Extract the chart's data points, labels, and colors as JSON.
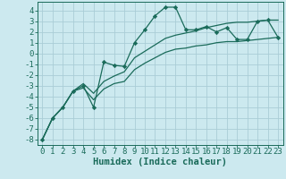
{
  "xlabel": "Humidex (Indice chaleur)",
  "bg_color": "#cce9ef",
  "grid_color": "#aacdd6",
  "line_color": "#1a6b5a",
  "x_values": [
    0,
    1,
    2,
    3,
    4,
    5,
    6,
    7,
    8,
    9,
    10,
    11,
    12,
    13,
    14,
    15,
    16,
    17,
    18,
    19,
    20,
    21,
    22,
    23
  ],
  "main_line": [
    -8.0,
    -6.0,
    -5.0,
    -3.5,
    -3.0,
    -5.0,
    -0.8,
    -1.1,
    -1.2,
    1.0,
    2.2,
    3.5,
    4.3,
    4.3,
    2.2,
    2.2,
    2.5,
    2.0,
    2.4,
    1.3,
    1.3,
    3.0,
    3.1,
    1.5
  ],
  "lower_line": [
    -8.0,
    -6.0,
    -5.0,
    -3.5,
    -3.2,
    -4.3,
    -3.3,
    -2.8,
    -2.6,
    -1.5,
    -0.9,
    -0.4,
    0.1,
    0.4,
    0.5,
    0.7,
    0.8,
    1.0,
    1.1,
    1.1,
    1.2,
    1.3,
    1.4,
    1.5
  ],
  "upper_line": [
    -8.0,
    -6.0,
    -5.0,
    -3.5,
    -2.8,
    -3.7,
    -2.6,
    -2.1,
    -1.7,
    -0.4,
    0.2,
    0.8,
    1.4,
    1.7,
    1.9,
    2.1,
    2.4,
    2.6,
    2.8,
    2.9,
    2.9,
    3.0,
    3.1,
    3.1
  ],
  "ylim": [
    -8.5,
    4.8
  ],
  "xlim": [
    -0.5,
    23.5
  ],
  "yticks": [
    -8,
    -7,
    -6,
    -5,
    -4,
    -3,
    -2,
    -1,
    0,
    1,
    2,
    3,
    4
  ],
  "xticks": [
    0,
    1,
    2,
    3,
    4,
    5,
    6,
    7,
    8,
    9,
    10,
    11,
    12,
    13,
    14,
    15,
    16,
    17,
    18,
    19,
    20,
    21,
    22,
    23
  ],
  "marker": "D",
  "marker_size": 2.2,
  "line_width": 0.9,
  "font_size": 6.5,
  "xlabel_fontsize": 7.5
}
